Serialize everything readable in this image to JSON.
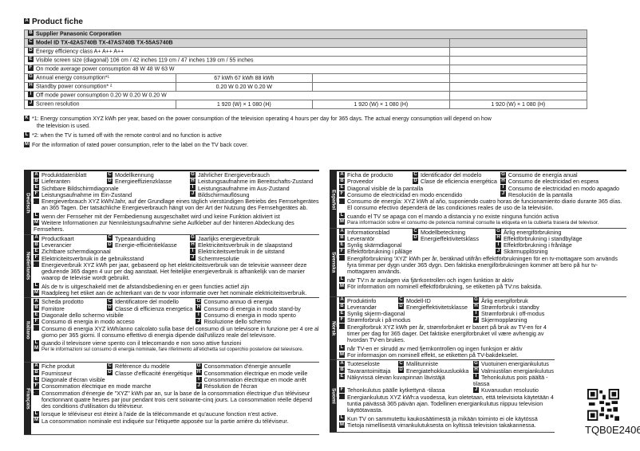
{
  "title": "Product fiche",
  "table": {
    "supplier": "Supplier Panasonic Corporation",
    "model": "Model ID TX-42AS740B TX-47AS740B TX-55AS740B",
    "rows": [
      {
        "letter": "D",
        "label": "Energy efficiency class A+ A++ A++",
        "values": [
          "",
          "",
          ""
        ]
      },
      {
        "letter": "E",
        "label": "Visible screen size (diagonal) 106 cm / 42 inches 119 cm / 47 inches 139 cm / 55 inches",
        "values": [
          "",
          "",
          ""
        ]
      },
      {
        "letter": "F",
        "label": "On mode average power consumption 48 W 48 W 63 W",
        "values": [
          "",
          "",
          ""
        ]
      },
      {
        "letter": "G",
        "label": "Annual energy consumption*¹",
        "values": [
          "67 kWh 67 kWh 88 kWh",
          "",
          ""
        ]
      },
      {
        "letter": "H",
        "label": "Standby power consumption* ²",
        "values": [
          "0.20 W 0.20 W 0.20 W",
          "",
          ""
        ]
      },
      {
        "letter": "I",
        "label": "Off mode power consumption 0.20 W 0.20 W 0.20 W",
        "values": [
          "",
          "",
          ""
        ]
      },
      {
        "letter": "J",
        "label": "Screen resolution",
        "values": [
          "1 920 (W) × 1 080 (H)",
          "1 920 (W) × 1 080 (H)",
          "1 920 (W) × 1 080 (H)"
        ]
      }
    ]
  },
  "footnotes": {
    "k1": "*1: Energy consumption XYZ kWh per year, based on the power consumption of the television operating 4 hours per day for 365 days. The actual energy consumption will depend on how",
    "k2": "the television is used.",
    "l": "*2: when the TV is turned off with the remote control and no function is active",
    "m": "For the information of rated power consumption, refer to the label on the TV back cover."
  },
  "sections": [
    {
      "lang": "Deutsch",
      "a": "Produktdatenblatt",
      "b": "Lieferanten",
      "c": "Modellkennung",
      "d": "Energieeffizienzklasse",
      "e": "Sichtbare Bildschirmdiagonale",
      "f": "Leistungsaufnahme im Ein-Zustand",
      "g": "Jährlicher Energieverbrauch",
      "h": "Leistungsaufnahme im Bereitschafts-Zustand",
      "i": "Leistungsaufnahme im Aus-Zustand",
      "j": "Bildschirmauflösung",
      "k": "Energieverbrauch XYZ kWh/Jahr, auf der Grundlage eines täglich vierstündigen Betriebs des Fernsehgerätes an 365 Tagen. Der tatsächliche Energieverbrauch hängt von der Art der Nutzung des Fernsehgerätes ab.",
      "l": "wenn der Fernseher mit der Fernbedienung ausgeschaltet wird und keine Funktion aktiviert ist",
      "m": "Weitere Informationen zur Nennleistungsaufnahme siehe Aufkleber auf der hinteren Abdeckung des Fernsehers."
    },
    {
      "lang": "Nederlands",
      "a": "Productkaart",
      "b": "Leverancier",
      "c": "Typeaanduiding",
      "d": "Energie-efficiëntieklasse",
      "e": "Zichtbare schermdiagonaal",
      "f": "Elektriciteitsverbruik in de gebruiksstand",
      "g": "Jaarlijks energieverbruik",
      "h": "Elektriciteitsverbruik in de slaapstand",
      "i": "Elektriciteitsverbruik in de uitstand",
      "j": "Schermresolutie",
      "k": "Energieverbruik XYZ kWh per jaar, gebaseerd op het elektriciteitsverbruik van de televisie wanneer deze gedurende 365 dagen 4 uur per dag aanstaat. Het feitelijke energieverbruik is afhankelijk van de manier waarop de televisie wordt gebruikt.",
      "l": "Als de tv is uitgeschakeld met de afstandsbediening en er geen functies actief zijn",
      "m": "Raadpleeg het etiket aan de achterkant van de tv voor informatie over het nominale elektriciteitsverbruik."
    },
    {
      "lang": "Italiano",
      "a": "Scheda prodotto",
      "b": "Fornitore",
      "c": "Identificatore del modello",
      "d": "Classe di efficienza energetica",
      "e": "Diagonale dello schermo visibile",
      "f": "Consumo di energia in modo acceso",
      "g": "Consumo annuo di energia",
      "h": "Consumo di energia in modo stand-by",
      "i": "Consumo di energia in modo spento",
      "j": "Risoluzione dello schermo",
      "k": "Consumo di energia XYZ kWh/anno calcolato sulla base del consumo di un televisore in funzione per 4 ore al giorno per 365 giorni. Il consumo effettivo di energia dipende dall'utilizzo reale del televisore.",
      "l": "quando il televisore viene spento con il telecomando e non sono attive funzioni",
      "m": "Per le informazioni sul consumo di energia nominale, fare riferimento all'etichetta sul coperchio posteriore del televisore."
    },
    {
      "lang": "Français",
      "a": "Fiche produit",
      "b": "Fournisseur",
      "c": "Référence du modèle",
      "d": "Classe d'efficacité énergétique",
      "e": "Diagonale d'écran visible",
      "f": "Consommation électrique en mode marche",
      "g": "Consommation d'énergie annuelle",
      "h": "Consommation électrique en mode veille",
      "i": "Consommation électrique en mode arrêt",
      "j": "Résolution de l'écran",
      "k": "Consommation d'énergie de \"XYZ\" kWh par an, sur la base de la consommation électrique d'un téléviseur fonctionnant quatre heures par jour pendant trois cent soixante-cinq jours. La consommation réelle dépend des conditions d'utilisation du téléviseur.",
      "l": "lorsque le téléviseur est éteint à l'aide de la télécommande et qu'aucune fonction n'est active.",
      "m": "La consommation nominale est indiquée sur l'étiquette apposée sur la partie arrière du téléviseur."
    },
    {
      "lang": "Español",
      "a": "Ficha de producto",
      "b": "Proveedor",
      "c": "Identificador del modelo",
      "d": "Clase de eficiencia energética",
      "e": "Diagonal visible de la pantalla",
      "f": "Consumo de electricidad en modo encendido",
      "g": "Consumo de energía anual",
      "h": "Consumo de electricidad en espera",
      "i": "Consumo de electricidad en modo apagado",
      "j": "Resolución de la pantalla",
      "k": "Consumo de energía: XYZ kWh al año, suponiendo cuatro horas de funcionamiento diario durante 365 días. El consumo efectivo dependerá de las condiciones reales de uso de la televisión.",
      "l": "cuando el TV se apaga con el mando a distancia y no existe ninguna función activa",
      "m": "Para información sobre el consumo de potencia nominal consulte la etiqueta en la cubierta trasera del televisor."
    },
    {
      "lang": "Svenska",
      "a": "Informationsblad",
      "b": "Leverantör",
      "c": "Modellbeteckning",
      "d": "Energieffektivitetsklass",
      "e": "Synlig skärmdiagonal",
      "f": "Effektförbrukning i påläge",
      "g": "Årlig energiförbrukning",
      "h": "Effektförbrukning i standbyläge",
      "i": "Effektförbrukning i frånläge",
      "j": "Skärmupplösning",
      "k": "Energiförbrukning 'XYZ' kWh per år, beräknad utifrån effektförbrukningen för en tv-mottagare som används fyra timmar per dygn under 365 dygn. Den faktiska energiförbrukningen kommer att bero på hur tv-mottagaren används.",
      "l": "när TV:n är avslagen via fjärrkontrollen och ingen funktion är aktiv",
      "m": "För information om nominell effektförbrukning, se etiketten på TV:ns baksida."
    },
    {
      "lang": "Norsk",
      "a": "Produktinfo",
      "b": "Leverandør",
      "c": "Modell-ID",
      "d": "Energieffektivitetsklasse",
      "e": "Synlig skjerm-diagonal",
      "f": "Strømforbruk i på-modus",
      "g": "Årlig energiforbruk",
      "h": "Strømforbruk i standby",
      "i": "Strømforbruk i off-modus",
      "j": "Skjermoppløsning",
      "k": "Energiforbruk XYZ kWh per år, strømforbruket er basert på bruk av TV-en for 4 timer per dag for 365 dager. Det faktiske energiforbruket vil være avhengig av hvordan TV-en brukes.",
      "l": "når TV-en er skrudd av med fjernkontrollen og ingen funksjon er aktiv",
      "m": "For informasjon om nominell effekt, se etiketten på TV-bakdekselet."
    },
    {
      "lang": "Suomi",
      "a": "Tuoteseloste",
      "b": "Tavarantoimittaja",
      "c": "Mallitunniste",
      "d": "Energiatehokkuusluokka",
      "e": "Näkyvissä olevan kuvapinnan lävistäjä",
      "f": "Tehonkulutus päälle kytkettynä -tilassa",
      "g": "Vuotuinen energiankulutus",
      "h": "Valmiustilan energiankulutus",
      "i": "Tehonkulutus pois päältä -tilassa",
      "j": "Kuvaruudun resoluutio",
      "k": "Energiankulutus XYZ kWh:a vuodessa, kun oletetaan, että televisiota käytetään 4 tuntia päivässä 365 päivän ajan. Todellinen energiankulutus riippuu television käyttötavasta.",
      "l": "Kun TV on sammutettu kaukosäätimestä ja mikään toiminto ei ole käytössä",
      "m": "Tietoja nimellisestä virrankulutuksesta on kyltissä television takakannessa."
    }
  ],
  "document_code": "TQB0E2406"
}
